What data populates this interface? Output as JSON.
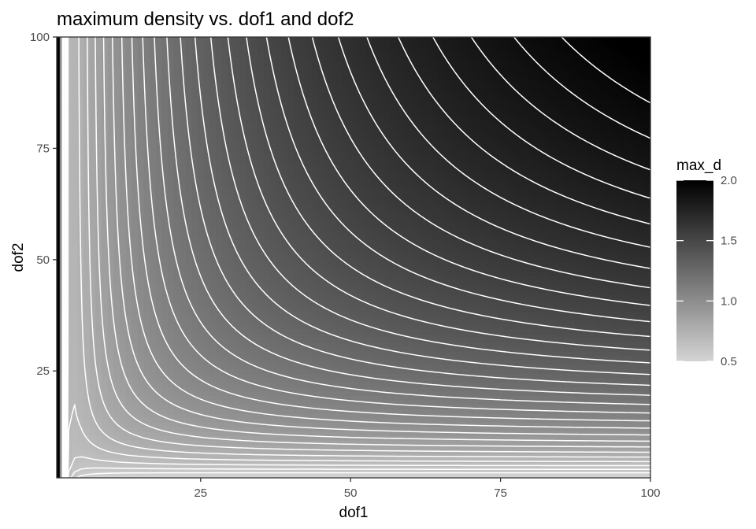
{
  "chart_data": {
    "type": "heatmap",
    "title": "maximum density vs. dof1 and dof2",
    "xlabel": "dof1",
    "ylabel": "dof2",
    "x_range": [
      1,
      100
    ],
    "y_range": [
      1,
      100
    ],
    "xlim": [
      1,
      100
    ],
    "ylim": [
      1,
      100
    ],
    "x_ticks": [
      25,
      50,
      75,
      100
    ],
    "y_ticks": [
      25,
      50,
      75,
      100
    ],
    "fill_variable": "max_d",
    "legend": {
      "title": "max_d",
      "position": "right",
      "range": [
        0.5,
        2.0
      ],
      "breaks": [
        0.5,
        1.0,
        1.5,
        2.0
      ],
      "break_labels": [
        "0.5",
        "1.0",
        "1.5",
        "2.0"
      ],
      "low_color": "#d4d4d4",
      "high_color": "#000000"
    },
    "contour_color": "#ffffff",
    "contour_levels": [
      0.55,
      0.6,
      0.65,
      0.7,
      0.75,
      0.8,
      0.85,
      0.9,
      0.95,
      1.0,
      1.05,
      1.1,
      1.15,
      1.2,
      1.25,
      1.3,
      1.35,
      1.4,
      1.45,
      1.5,
      1.55,
      1.6,
      1.65,
      1.7,
      1.75,
      1.8,
      1.85,
      1.9,
      1.95
    ],
    "grid": false,
    "panel_border": true
  }
}
